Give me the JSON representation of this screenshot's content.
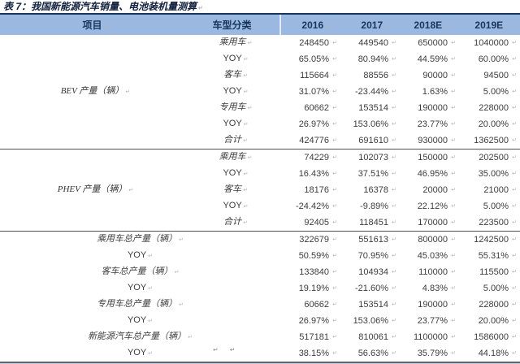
{
  "title": "表 7：我国新能源汽车销量、电池装机量测算",
  "colors": {
    "header_bg": "#9ab8e0",
    "header_text": "#17365d",
    "title_rule": "#17365d",
    "body_text": "#3d3d3d"
  },
  "table": {
    "headers": [
      "项目",
      "车型分类",
      "2016",
      "2017",
      "2018E",
      "2019E"
    ],
    "groups": [
      {
        "label": "BEV 产量（辆）",
        "rows": [
          {
            "type": "乘用车",
            "values": [
              "248450",
              "449540",
              "650000",
              "1040000"
            ]
          },
          {
            "type": "YOY",
            "values": [
              "65.05%",
              "80.94%",
              "44.59%",
              "60.00%"
            ]
          },
          {
            "type": "客车",
            "values": [
              "115664",
              "88556",
              "90000",
              "94500"
            ]
          },
          {
            "type": "YOY",
            "values": [
              "31.07%",
              "-23.44%",
              "1.63%",
              "5.00%"
            ]
          },
          {
            "type": "专用车",
            "values": [
              "60662",
              "153514",
              "190000",
              "228000"
            ]
          },
          {
            "type": "YOY",
            "values": [
              "26.97%",
              "153.06%",
              "23.77%",
              "20.00%"
            ]
          },
          {
            "type": "合计",
            "values": [
              "424776",
              "691610",
              "930000",
              "1362500"
            ]
          }
        ]
      },
      {
        "label": "PHEV 产量（辆）",
        "rows": [
          {
            "type": "乘用车",
            "values": [
              "74229",
              "102073",
              "150000",
              "202500"
            ]
          },
          {
            "type": "YOY",
            "values": [
              "16.43%",
              "37.51%",
              "46.95%",
              "35.00%"
            ]
          },
          {
            "type": "客车",
            "values": [
              "18176",
              "16378",
              "20000",
              "21000"
            ]
          },
          {
            "type": "YOY",
            "values": [
              "-24.42%",
              "-9.89%",
              "22.12%",
              "5.00%"
            ]
          },
          {
            "type": "合计",
            "values": [
              "92405",
              "118451",
              "170000",
              "223500"
            ]
          }
        ]
      }
    ],
    "summary_rows": [
      {
        "label": "乘用车总产量（辆）",
        "values": [
          "322679",
          "551613",
          "800000",
          "1242500"
        ]
      },
      {
        "label": "YOY",
        "values": [
          "50.59%",
          "70.95%",
          "45.03%",
          "55.31%"
        ]
      },
      {
        "label": "客车总产量（辆）",
        "values": [
          "133840",
          "104934",
          "110000",
          "115500"
        ]
      },
      {
        "label": "YOY",
        "values": [
          "19.19%",
          "-21.60%",
          "4.83%",
          "5.00%"
        ]
      },
      {
        "label": "专用车总产量（辆）",
        "values": [
          "60662",
          "153514",
          "190000",
          "228000"
        ]
      },
      {
        "label": "YOY",
        "values": [
          "26.97%",
          "153.06%",
          "23.77%",
          "20.00%"
        ]
      },
      {
        "label": "新能源汽车总产量（辆）",
        "values": [
          "517181",
          "810061",
          "1100000",
          "1586000"
        ]
      },
      {
        "label": "YOY",
        "values": [
          "38.15%",
          "56.63%",
          "35.79%",
          "44.18%"
        ]
      }
    ]
  }
}
